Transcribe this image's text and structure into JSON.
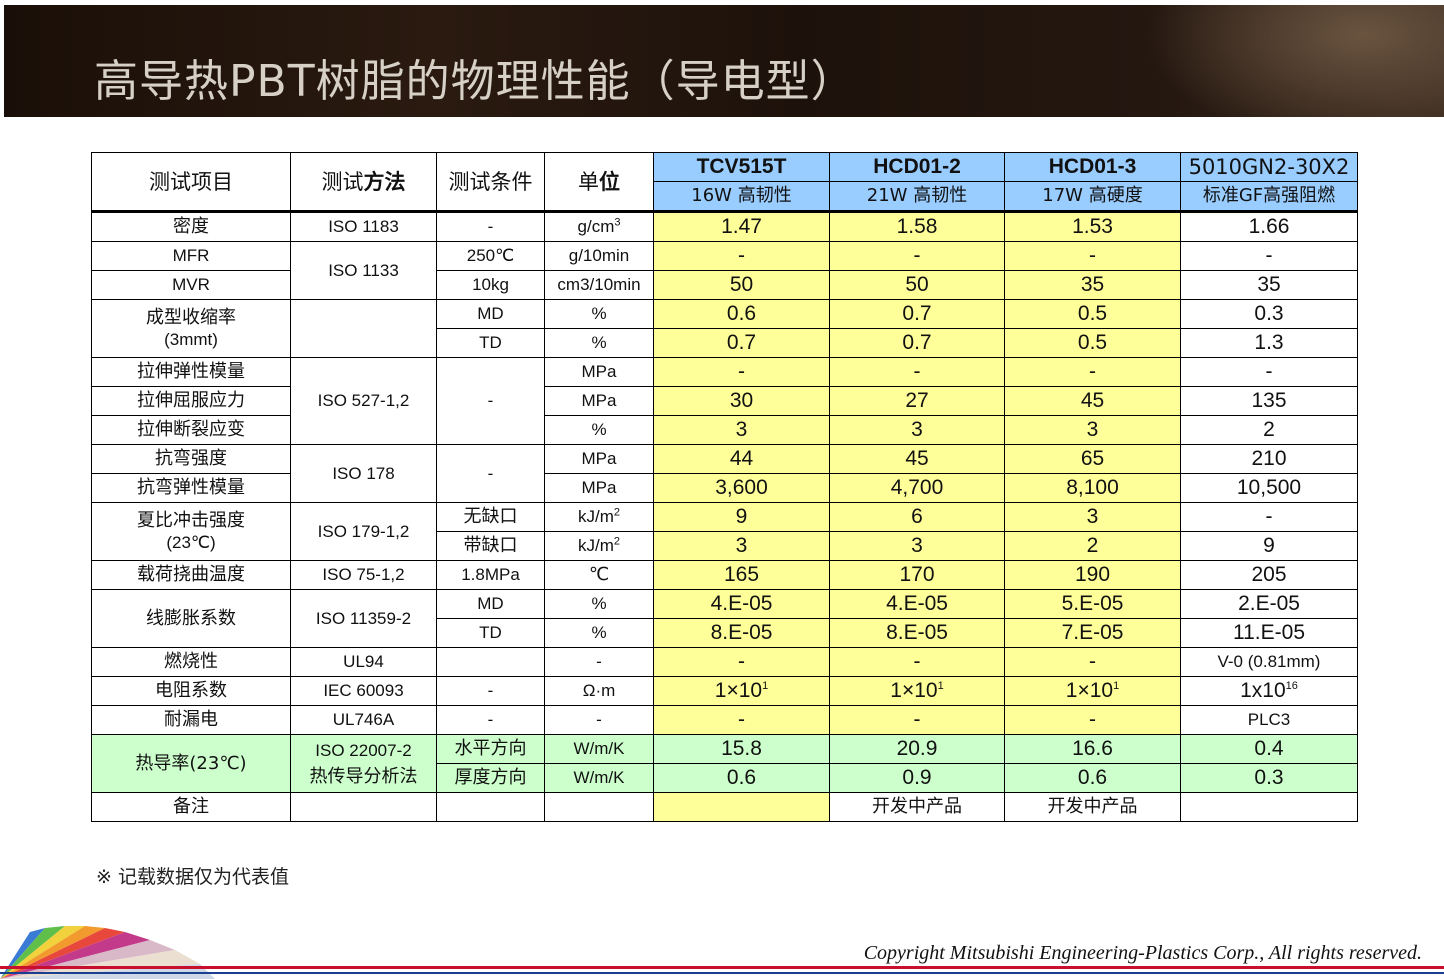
{
  "title": "高导热PBT树脂的物理性能（导电型）",
  "header": {
    "item": "测试项目",
    "method_prefix": "测试",
    "method_bold": "方法",
    "condition": "测试条件",
    "unit_prefix": "单",
    "unit_bold": "位",
    "products": [
      {
        "name": "TCV515T",
        "desc": "16W 高韧性"
      },
      {
        "name": "HCD01-2",
        "desc": "21W 高韧性"
      },
      {
        "name": "HCD01-3",
        "desc": "17W 高硬度"
      },
      {
        "name": "5010GN2-30X2",
        "desc": "标准GF高强阻燃"
      }
    ]
  },
  "rows": {
    "density": {
      "item": "密度",
      "method": "ISO 1183",
      "cond": "-",
      "unit": "g/cm",
      "unit_sup": "3",
      "v": [
        "1.47",
        "1.58",
        "1.53",
        "1.66"
      ]
    },
    "mfr": {
      "item": "MFR",
      "method": "ISO 1133",
      "cond": "250℃",
      "unit": "g/10min",
      "v": [
        "-",
        "-",
        "-",
        "-"
      ]
    },
    "mvr": {
      "item": "MVR",
      "cond": "10kg",
      "unit": "cm3/10min",
      "v": [
        "50",
        "50",
        "35",
        "35"
      ]
    },
    "shrink_md": {
      "item": "成型收缩率",
      "item2": "(3mmt)",
      "cond": "MD",
      "unit": "%",
      "v": [
        "0.6",
        "0.7",
        "0.5",
        "0.3"
      ]
    },
    "shrink_td": {
      "cond": "TD",
      "unit": "%",
      "v": [
        "0.7",
        "0.7",
        "0.5",
        "1.3"
      ]
    },
    "tensile_mod": {
      "item": "拉伸弹性模量",
      "method": "ISO 527-1,2",
      "cond": "-",
      "unit": "MPa",
      "v": [
        "-",
        "-",
        "-",
        "-"
      ]
    },
    "tensile_yield": {
      "item": "拉伸屈服应力",
      "unit": "MPa",
      "v": [
        "30",
        "27",
        "45",
        "135"
      ]
    },
    "tensile_strain": {
      "item": "拉伸断裂应变",
      "unit": "%",
      "v": [
        "3",
        "3",
        "3",
        "2"
      ]
    },
    "flex_str": {
      "item": "抗弯强度",
      "method": "ISO 178",
      "cond": "-",
      "unit": "MPa",
      "v": [
        "44",
        "45",
        "65",
        "210"
      ]
    },
    "flex_mod": {
      "item": "抗弯弹性模量",
      "unit": "MPa",
      "v": [
        "3,600",
        "4,700",
        "8,100",
        "10,500"
      ]
    },
    "charpy_un": {
      "item": "夏比冲击强度",
      "item2": "(23℃)",
      "method": "ISO 179-1,2",
      "cond": "无缺口",
      "unit": "kJ/m",
      "unit_sup": "2",
      "v": [
        "9",
        "6",
        "3",
        "-"
      ]
    },
    "charpy_n": {
      "cond": "带缺口",
      "unit": "kJ/m",
      "unit_sup": "2",
      "v": [
        "3",
        "3",
        "2",
        "9"
      ]
    },
    "hdt": {
      "item": "载荷挠曲温度",
      "method": "ISO 75-1,2",
      "cond": "1.8MPa",
      "unit": "℃",
      "v": [
        "165",
        "170",
        "190",
        "205"
      ]
    },
    "clte_md": {
      "item": "线膨胀系数",
      "method": "ISO 11359-2",
      "cond": "MD",
      "unit": "%",
      "v": [
        "4.E-05",
        "4.E-05",
        "5.E-05",
        "2.E-05"
      ]
    },
    "clte_td": {
      "cond": "TD",
      "unit": "%",
      "v": [
        "8.E-05",
        "8.E-05",
        "7.E-05",
        "11.E-05"
      ]
    },
    "flame": {
      "item": "燃烧性",
      "method": "UL94",
      "cond": "",
      "unit": "-",
      "v": [
        "-",
        "-",
        "-",
        "V-0 (0.81mm)"
      ]
    },
    "resist": {
      "item": "电阻系数",
      "method": "IEC 60093",
      "cond": "-",
      "unit": "Ω·m",
      "v": [
        "1×10",
        "1×10",
        "1×10",
        "1x10"
      ],
      "v_sup": [
        "1",
        "1",
        "1",
        "16"
      ]
    },
    "tracking": {
      "item": "耐漏电",
      "method": "UL746A",
      "cond": "-",
      "unit": "-",
      "v": [
        "-",
        "-",
        "-",
        "PLC3"
      ]
    },
    "thermal_h": {
      "item": "热导率(23℃)",
      "method": "ISO 22007-2",
      "method2": "热传导分析法",
      "cond": "水平方向",
      "unit": "W/m/K",
      "v": [
        "15.8",
        "20.9",
        "16.6",
        "0.4"
      ]
    },
    "thermal_v": {
      "cond": "厚度方向",
      "unit": "W/m/K",
      "v": [
        "0.6",
        "0.9",
        "0.6",
        "0.3"
      ]
    },
    "remark": {
      "item": "备注",
      "v": [
        "",
        "开发中产品",
        "开发中产品",
        ""
      ]
    }
  },
  "note": "※  记载数据仅为代表值",
  "copyright": "Copyright Mitsubishi Engineering-Plastics Corp., All rights reserved.",
  "colors": {
    "product_header": "#99ccff",
    "value_highlight": "#ffff99",
    "thermal_row": "#ccffcc",
    "title_bar": "#1f140c"
  }
}
